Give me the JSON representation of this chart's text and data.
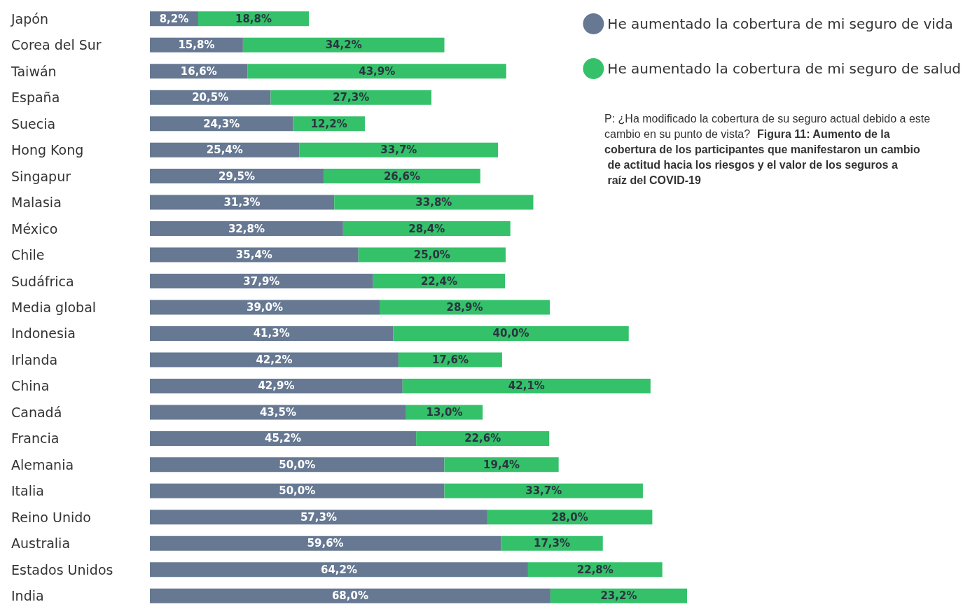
{
  "chart_data": {
    "type": "bar",
    "orientation": "horizontal",
    "stacked": true,
    "legend": "top right",
    "categories": [
      "Japón",
      "Corea del Sur",
      "Taiwán",
      "España",
      "Suecia",
      "Hong Kong",
      "Singapur",
      "Malasia",
      "México",
      "Chile",
      "Sudáfrica",
      "Media global",
      "Indonesia",
      "Irlanda",
      "China",
      "Canadá",
      "Francia",
      "Alemania",
      "Italia",
      "Reino Unido",
      "Australia",
      "Estados Unidos",
      "India"
    ],
    "series": [
      {
        "name": "He aumentado la cobertura de mi seguro de vida",
        "color": "#667892",
        "values": [
          8.2,
          15.8,
          16.6,
          20.5,
          24.3,
          25.4,
          29.5,
          31.3,
          32.8,
          35.4,
          37.9,
          39.0,
          41.3,
          42.2,
          42.9,
          43.5,
          45.2,
          50.0,
          50.0,
          57.3,
          59.6,
          64.2,
          68.0
        ],
        "value_labels": [
          "8,2%",
          "15,8%",
          "16,6%",
          "20,5%",
          "24,3%",
          "25,4%",
          "29,5%",
          "31,3%",
          "32,8%",
          "35,4%",
          "37,9%",
          "39,0%",
          "41,3%",
          "42,2%",
          "42,9%",
          "43,5%",
          "45,2%",
          "50,0%",
          "50,0%",
          "57,3%",
          "59,6%",
          "64,2%",
          "68,0%"
        ]
      },
      {
        "name": "He aumentado la cobertura de mi seguro de salud",
        "color": "#34c16a",
        "values": [
          18.8,
          34.2,
          43.9,
          27.3,
          12.2,
          33.7,
          26.6,
          33.8,
          28.4,
          25.0,
          22.4,
          28.9,
          40.0,
          17.6,
          42.1,
          13.0,
          22.6,
          19.4,
          33.7,
          28.0,
          17.3,
          22.8,
          23.2
        ],
        "value_labels": [
          "18,8%",
          "34,2%",
          "43,9%",
          "27,3%",
          "12,2%",
          "33,7%",
          "26,6%",
          "33,8%",
          "28,4%",
          "25,0%",
          "22,4%",
          "28,9%",
          "40,0%",
          "17,6%",
          "42,1%",
          "13,0%",
          "22,6%",
          "19,4%",
          "33,7%",
          "28,0%",
          "17,3%",
          "22,8%",
          "23,2%"
        ]
      }
    ],
    "annotations": [
      "P: ¿Ha modificado la cobertura de su seguro actual debido a este cambio en su punto de vista?",
      "Figura 11: Aumento de la cobertura de los participantes que manifestaron un cambio de actitud hacia los riesgos y el valor de los seguros a raíz del COVID-19"
    ]
  }
}
